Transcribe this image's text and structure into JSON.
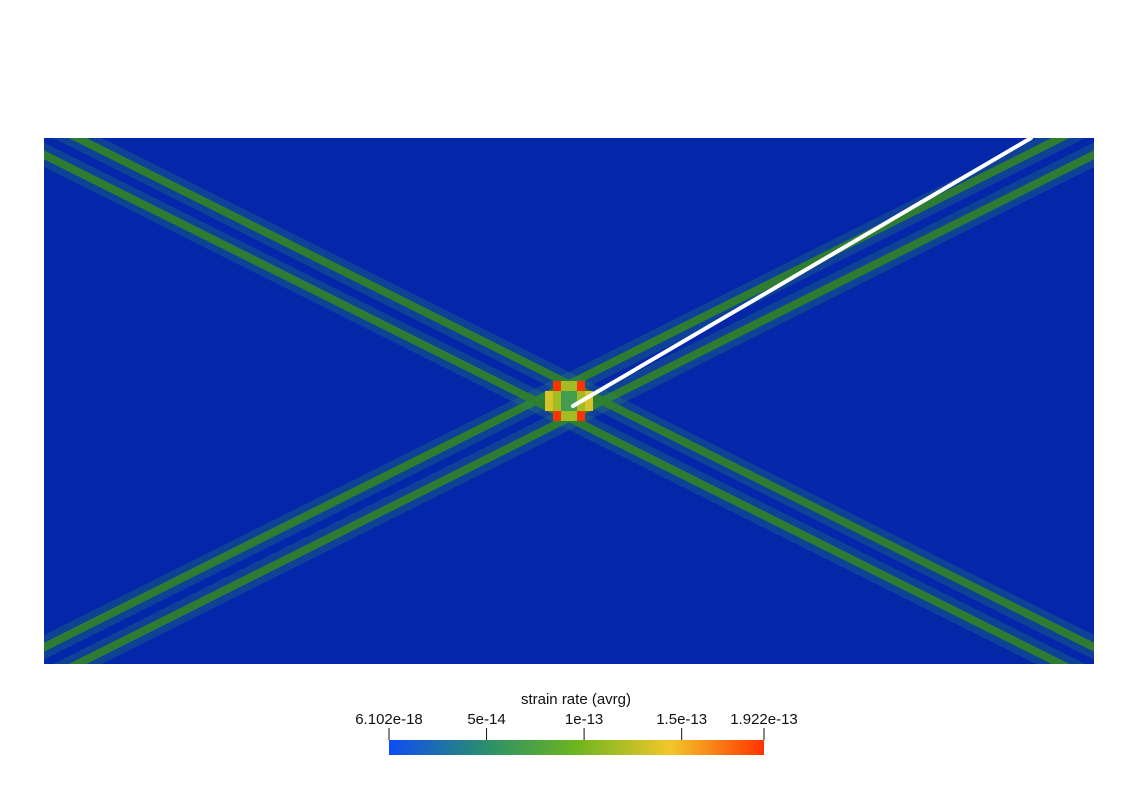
{
  "chart_data": {
    "type": "heatmap",
    "field_name": "strain rate (avrg)",
    "colormap": [
      {
        "t": 0.0,
        "color": "#0d4df5"
      },
      {
        "t": 0.26,
        "color": "#2a8f6a"
      },
      {
        "t": 0.5,
        "color": "#6db51f"
      },
      {
        "t": 0.75,
        "color": "#f3c72a"
      },
      {
        "t": 1.0,
        "color": "#ff3300"
      }
    ],
    "background_color": "#0327a8",
    "band_color": "#2f7f2c",
    "range": [
      6.102e-18,
      1.922e-13
    ],
    "colorbar": {
      "title": "strain rate (avrg)",
      "ticks": [
        {
          "value": 6.102e-18,
          "label": "6.102e-18"
        },
        {
          "value": 5e-14,
          "label": "5e-14"
        },
        {
          "value": 1e-13,
          "label": "1e-13"
        },
        {
          "value": 1.5e-13,
          "label": "1.5e-13"
        },
        {
          "value": 1.922e-13,
          "label": "1.922e-13"
        }
      ]
    },
    "bands": [
      {
        "from": [
          0.0,
          0.0
        ],
        "to": [
          1.0,
          1.0
        ],
        "value": 5.3e-14
      },
      {
        "from": [
          0.0,
          1.0
        ],
        "to": [
          1.0,
          0.0
        ],
        "value": 5.3e-14
      }
    ],
    "center_anomaly": {
      "center": [
        0.5,
        0.5
      ],
      "max_value": 1.922e-13
    },
    "line_overlay": {
      "from": [
        0.5,
        0.5
      ],
      "to": [
        0.94,
        1.0
      ],
      "color": "#ffffff"
    }
  }
}
